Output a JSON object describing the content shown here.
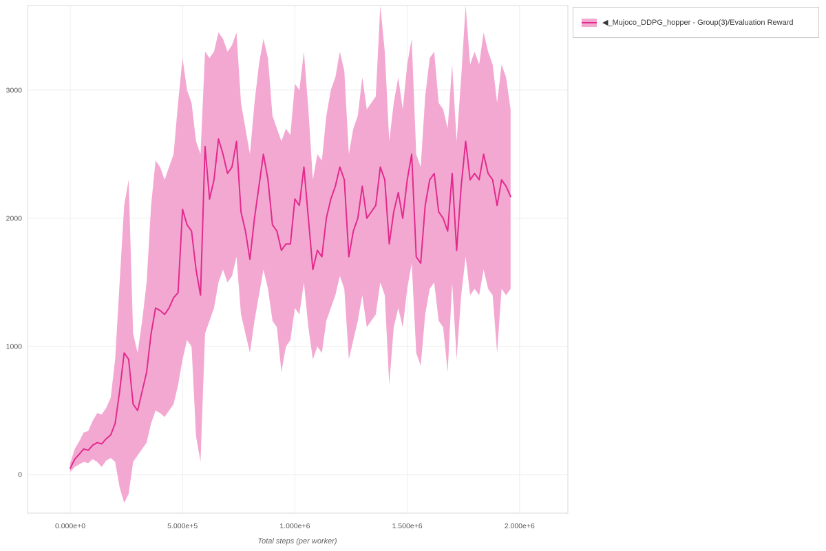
{
  "chart_data": {
    "type": "line",
    "xlabel": "Total steps (per worker)",
    "ylabel": "",
    "xlim": [
      -190000,
      2215000
    ],
    "ylim": [
      -300,
      3660
    ],
    "grid": true,
    "legend_position": "top-right-outside",
    "colors": {
      "grid": "#ececec",
      "border": "#d9d9d9",
      "tick_text": "#555555",
      "axis_title": "#666666"
    },
    "xticks": [
      {
        "value": 0,
        "label": "0.000e+0"
      },
      {
        "value": 500000,
        "label": "5.000e+5"
      },
      {
        "value": 1000000,
        "label": "1.000e+6"
      },
      {
        "value": 1500000,
        "label": "1.500e+6"
      },
      {
        "value": 2000000,
        "label": "2.000e+6"
      }
    ],
    "yticks": [
      {
        "value": 0,
        "label": "0"
      },
      {
        "value": 1000,
        "label": "1000"
      },
      {
        "value": 2000,
        "label": "2000"
      },
      {
        "value": 3000,
        "label": "3000"
      }
    ],
    "series": [
      {
        "name": "◀_Mujoco_DDPG_hopper - Group(3)/Evaluation Reward",
        "line_color": "#e22a8d",
        "band_color": "#f3a8d2",
        "x": [
          0,
          20000,
          40000,
          60000,
          80000,
          100000,
          120000,
          140000,
          160000,
          180000,
          200000,
          220000,
          240000,
          260000,
          280000,
          300000,
          320000,
          340000,
          360000,
          380000,
          400000,
          420000,
          440000,
          460000,
          480000,
          500000,
          520000,
          540000,
          560000,
          580000,
          600000,
          620000,
          640000,
          660000,
          680000,
          700000,
          720000,
          740000,
          760000,
          780000,
          800000,
          820000,
          840000,
          860000,
          880000,
          900000,
          920000,
          940000,
          960000,
          980000,
          1000000,
          1020000,
          1040000,
          1060000,
          1080000,
          1100000,
          1120000,
          1140000,
          1160000,
          1180000,
          1200000,
          1220000,
          1240000,
          1260000,
          1280000,
          1300000,
          1320000,
          1340000,
          1360000,
          1380000,
          1400000,
          1420000,
          1440000,
          1460000,
          1480000,
          1500000,
          1520000,
          1540000,
          1560000,
          1580000,
          1600000,
          1620000,
          1640000,
          1660000,
          1680000,
          1700000,
          1720000,
          1740000,
          1760000,
          1780000,
          1800000,
          1820000,
          1840000,
          1860000,
          1880000,
          1900000,
          1920000,
          1940000,
          1960000
        ],
        "mean": [
          50,
          120,
          160,
          200,
          190,
          230,
          250,
          240,
          280,
          310,
          400,
          650,
          950,
          900,
          550,
          500,
          650,
          800,
          1100,
          1300,
          1280,
          1250,
          1300,
          1380,
          1420,
          2070,
          1950,
          1900,
          1600,
          1400,
          2560,
          2150,
          2300,
          2620,
          2500,
          2350,
          2400,
          2600,
          2050,
          1900,
          1680,
          2000,
          2250,
          2500,
          2300,
          1950,
          1900,
          1750,
          1800,
          1800,
          2150,
          2100,
          2400,
          2000,
          1600,
          1750,
          1700,
          2000,
          2150,
          2250,
          2400,
          2300,
          1700,
          1900,
          2000,
          2250,
          2000,
          2050,
          2100,
          2400,
          2300,
          1800,
          2050,
          2200,
          2000,
          2300,
          2500,
          1700,
          1650,
          2100,
          2300,
          2350,
          2050,
          2000,
          1900,
          2350,
          1750,
          2250,
          2600,
          2300,
          2350,
          2300,
          2500,
          2350,
          2300,
          2100,
          2300,
          2250,
          2170
        ],
        "lower": [
          20,
          60,
          80,
          100,
          90,
          120,
          100,
          60,
          110,
          130,
          100,
          -100,
          -220,
          -150,
          100,
          150,
          200,
          250,
          400,
          500,
          480,
          450,
          500,
          550,
          700,
          900,
          1050,
          1000,
          300,
          100,
          1100,
          1200,
          1300,
          1500,
          1600,
          1500,
          1550,
          1700,
          1250,
          1100,
          950,
          1200,
          1400,
          1600,
          1450,
          1200,
          1150,
          800,
          1000,
          1050,
          1300,
          1250,
          1500,
          1150,
          900,
          1000,
          950,
          1200,
          1300,
          1400,
          1550,
          1450,
          900,
          1050,
          1200,
          1400,
          1150,
          1200,
          1250,
          1500,
          1400,
          700,
          1150,
          1300,
          1150,
          1450,
          1650,
          950,
          850,
          1250,
          1450,
          1500,
          1200,
          1150,
          800,
          1500,
          900,
          1400,
          1700,
          1400,
          1450,
          1400,
          1600,
          1450,
          1400,
          950,
          1450,
          1400,
          1450
        ],
        "upper": [
          90,
          200,
          260,
          330,
          340,
          420,
          480,
          470,
          520,
          600,
          900,
          1500,
          2100,
          2300,
          1100,
          950,
          1200,
          1500,
          2100,
          2450,
          2400,
          2300,
          2400,
          2500,
          2900,
          3250,
          3000,
          2900,
          2600,
          2500,
          3300,
          3250,
          3300,
          3450,
          3400,
          3300,
          3350,
          3450,
          2900,
          2700,
          2500,
          2900,
          3200,
          3400,
          3250,
          2800,
          2700,
          2600,
          2700,
          2650,
          3050,
          3000,
          3300,
          2850,
          2300,
          2500,
          2450,
          2800,
          3000,
          3100,
          3300,
          3150,
          2500,
          2700,
          2800,
          3100,
          2850,
          2900,
          2950,
          3660,
          3300,
          2600,
          2900,
          3100,
          2850,
          3200,
          3400,
          2500,
          2400,
          2950,
          3250,
          3300,
          2900,
          2850,
          2700,
          3200,
          2600,
          3100,
          3660,
          3200,
          3300,
          3200,
          3450,
          3300,
          3200,
          2900,
          3200,
          3100,
          2850
        ]
      }
    ]
  }
}
